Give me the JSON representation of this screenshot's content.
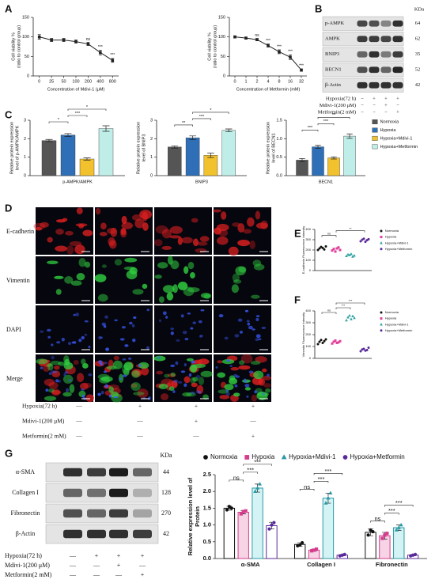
{
  "panel_labels": [
    "A",
    "B",
    "C",
    "D",
    "E",
    "F",
    "G"
  ],
  "blot_b": {
    "header": "KDa",
    "rows": [
      {
        "label": "p-AMPK",
        "kda": "64"
      },
      {
        "label": "AMPK",
        "kda": "62"
      },
      {
        "label": "BNIP3",
        "kda": "35"
      },
      {
        "label": "BECN1",
        "kda": "52"
      },
      {
        "label": "β-Actin",
        "kda": "42"
      }
    ],
    "conditions": [
      {
        "label": "Hypoxia(72 h)",
        "signs": [
          "−",
          "+",
          "+",
          "+"
        ]
      },
      {
        "label": "Mdivi-1(200 μM)",
        "signs": [
          "−",
          "−",
          "+",
          "−"
        ]
      },
      {
        "label": "Metformin(2 mM)",
        "signs": [
          "−",
          "−",
          "−",
          "+"
        ]
      }
    ]
  },
  "panel_d": {
    "rows": [
      "E-cadherin",
      "Vimentin",
      "DAPI",
      "Merge"
    ],
    "conditions": [
      {
        "label": "Hypoxia(72 h)",
        "signs": [
          "—",
          "+",
          "+",
          "+"
        ]
      },
      {
        "label": "Mdivi-1(200 μM)",
        "signs": [
          "—",
          "—",
          "+",
          "—"
        ]
      },
      {
        "label": "Metformin(2 mM)",
        "signs": [
          "—",
          "—",
          "—",
          "+"
        ]
      }
    ]
  },
  "blot_g": {
    "header": "KDa",
    "rows": [
      {
        "label": "α-SMA",
        "kda": "44"
      },
      {
        "label": "Collagen I",
        "kda": "128"
      },
      {
        "label": "Fibronectin",
        "kda": "270"
      },
      {
        "label": "β-Actin",
        "kda": "42"
      }
    ],
    "conditions": [
      {
        "label": "Hypoxia(72 h)",
        "signs": [
          "—",
          "+",
          "+",
          "+"
        ]
      },
      {
        "label": "Mdivi-1(200 μM)",
        "signs": [
          "—",
          "—",
          "+",
          "—"
        ]
      },
      {
        "label": "Metformin(2 mM)",
        "signs": [
          "—",
          "—",
          "—",
          "+"
        ]
      }
    ]
  },
  "chart_data": [
    {
      "type": "line",
      "x_label": "Concentration of Mdivi-1 (μM)",
      "y_label": [
        "Cell viability %",
        "(ratio to control group)"
      ],
      "categories": [
        "0",
        "25",
        "50",
        "100",
        "200",
        "400",
        "800"
      ],
      "series": [
        {
          "color": "#222222",
          "values": [
            100,
            92,
            92,
            88,
            82,
            60,
            40
          ],
          "errors": [
            6,
            4,
            4,
            4,
            4,
            6,
            5
          ],
          "point_labels": [
            null,
            null,
            null,
            null,
            "ns",
            "***",
            "***"
          ]
        }
      ],
      "ylim": [
        0,
        150
      ],
      "yticks": [
        0,
        50,
        100,
        150
      ]
    },
    {
      "type": "line",
      "x_label": "Concentration of Metformin (mM)",
      "y_label": [
        "Cell viability %",
        "(ratio to control group)"
      ],
      "categories": [
        "0",
        "1",
        "2",
        "4",
        "8",
        "16",
        "32"
      ],
      "series": [
        {
          "color": "#222222",
          "values": [
            100,
            97,
            93,
            78,
            62,
            48,
            15
          ],
          "errors": [
            3,
            3,
            3,
            4,
            5,
            6,
            3
          ],
          "point_labels": [
            null,
            null,
            "ns",
            "***",
            "***",
            "***",
            "***"
          ]
        }
      ],
      "ylim": [
        0,
        150
      ],
      "yticks": [
        0,
        50,
        100,
        150
      ]
    },
    {
      "type": "bar",
      "y_label": [
        "Relative protein expression",
        "level of p-AMPK/AMPK"
      ],
      "categories": [
        "p-AMPK/AMPK"
      ],
      "series": [
        {
          "color": "#555555",
          "values": [
            1.9
          ],
          "errors": [
            0.06
          ]
        },
        {
          "color": "#2e6fb7",
          "values": [
            2.2
          ],
          "errors": [
            0.08
          ]
        },
        {
          "color": "#f2c12e",
          "values": [
            0.9
          ],
          "errors": [
            0.06
          ]
        },
        {
          "color": "#bfeee8",
          "values": [
            2.55
          ],
          "errors": [
            0.15
          ]
        }
      ],
      "brackets": [
        {
          "series": [
            0,
            1
          ],
          "label": "*"
        },
        {
          "series": [
            1,
            2
          ],
          "label": "***"
        },
        {
          "series": [
            1,
            3
          ],
          "label": "*"
        }
      ],
      "ylim": [
        0,
        3
      ],
      "yticks": [
        0,
        1,
        2,
        3
      ]
    },
    {
      "type": "bar",
      "y_label": [
        "Relative protein expression",
        "level of BNIP3"
      ],
      "categories": [
        "BNIP3"
      ],
      "series": [
        {
          "color": "#555555",
          "values": [
            1.55
          ],
          "errors": [
            0.06
          ]
        },
        {
          "color": "#2e6fb7",
          "values": [
            2.05
          ],
          "errors": [
            0.1
          ]
        },
        {
          "color": "#f2c12e",
          "values": [
            1.1
          ],
          "errors": [
            0.12
          ]
        },
        {
          "color": "#bfeee8",
          "values": [
            2.45
          ],
          "errors": [
            0.08
          ]
        }
      ],
      "brackets": [
        {
          "series": [
            0,
            1
          ],
          "label": "**"
        },
        {
          "series": [
            1,
            2
          ],
          "label": "***"
        },
        {
          "series": [
            1,
            3
          ],
          "label": "*"
        }
      ],
      "ylim": [
        0,
        3
      ],
      "yticks": [
        0,
        1,
        2,
        3
      ]
    },
    {
      "type": "bar",
      "y_label": [
        "Relative protein expression",
        "level of BECN1"
      ],
      "categories": [
        "BECN1"
      ],
      "legend": "right",
      "series": [
        {
          "name": "Normoxia",
          "color": "#555555",
          "values": [
            0.42
          ],
          "errors": [
            0.04
          ]
        },
        {
          "name": "Hypoxia",
          "color": "#2e6fb7",
          "values": [
            0.78
          ],
          "errors": [
            0.04
          ]
        },
        {
          "name": "Hypoxia+Mdivi-1",
          "color": "#f2c12e",
          "values": [
            0.48
          ],
          "errors": [
            0.03
          ]
        },
        {
          "name": "Hypoxia+Metformin",
          "color": "#bfeee8",
          "values": [
            1.07
          ],
          "errors": [
            0.06
          ]
        }
      ],
      "brackets": [
        {
          "series": [
            0,
            1
          ],
          "label": "***"
        },
        {
          "series": [
            1,
            2
          ],
          "label": "***"
        },
        {
          "series": [
            1,
            3
          ],
          "label": "**"
        }
      ],
      "ylim": [
        0,
        1.5
      ],
      "yticks": [
        {
          "value": 0,
          "label": "0.0"
        },
        0.5,
        {
          "value": 1,
          "label": "1.0"
        },
        1.5
      ]
    },
    {
      "type": "dot",
      "y_label": [
        "E-cadherin Fluorescence Intensity"
      ],
      "legend": "right",
      "series": [
        {
          "name": "Normoxia",
          "color": "#111111",
          "marker": "circle",
          "values": [
            200,
            215,
            230,
            220,
            205,
            235
          ]
        },
        {
          "name": "Hypoxia",
          "color": "#e0409a",
          "marker": "square",
          "values": [
            195,
            210,
            185,
            215,
            225,
            200
          ]
        },
        {
          "name": "Hypoxia+Mdivi-1",
          "color": "#2aa0a0",
          "marker": "triangle",
          "values": [
            140,
            155,
            150,
            160,
            135,
            145
          ]
        },
        {
          "name": "Hypoxia+Metformin",
          "color": "#5a2a9a",
          "marker": "circle",
          "values": [
            285,
            300,
            310,
            280,
            295,
            305
          ]
        }
      ],
      "brackets": [
        {
          "series": [
            0,
            1
          ],
          "label": "ns"
        },
        {
          "series": [
            1,
            3
          ],
          "label": "**"
        }
      ],
      "ylim": [
        0,
        400
      ],
      "yticks": [
        0,
        100,
        200,
        300,
        400
      ]
    },
    {
      "type": "dot",
      "y_label": [
        "Vimentin Fluorescence Intensity"
      ],
      "legend": "right",
      "series": [
        {
          "name": "Normoxia",
          "color": "#111111",
          "marker": "circle",
          "values": [
            120,
            140,
            155,
            130,
            145,
            160
          ]
        },
        {
          "name": "Hypoxia",
          "color": "#e0409a",
          "marker": "square",
          "values": [
            125,
            140,
            150,
            130,
            135,
            145
          ]
        },
        {
          "name": "Hypoxia+Mdivi-1",
          "color": "#2aa0a0",
          "marker": "triangle",
          "values": [
            320,
            345,
            360,
            330,
            355,
            340
          ]
        },
        {
          "name": "Hypoxia+Metformin",
          "color": "#5a2a9a",
          "marker": "circle",
          "values": [
            60,
            75,
            80,
            65,
            70,
            90
          ]
        }
      ],
      "brackets": [
        {
          "series": [
            0,
            1
          ],
          "label": "ns"
        },
        {
          "series": [
            1,
            2
          ],
          "label": "***"
        },
        {
          "series": [
            1,
            3
          ],
          "label": "***"
        }
      ],
      "ylim": [
        0,
        400
      ],
      "yticks": [
        0,
        100,
        200,
        300,
        400
      ]
    },
    {
      "type": "bar",
      "y_label": [
        "Relative expression level of",
        "Protein"
      ],
      "categories": [
        "α-SMA",
        "Collagen I",
        "Fibronectin"
      ],
      "legend": "top",
      "series": [
        {
          "name": "Normoxia",
          "color": "#111111",
          "fill": "#ffffff",
          "marker": "circle",
          "values": [
            1.5,
            0.42,
            0.78
          ],
          "errors": [
            0.06,
            0.05,
            0.1
          ],
          "points": [
            [
              1.45,
              1.55,
              1.5
            ],
            [
              0.38,
              0.4,
              0.47
            ],
            [
              0.7,
              0.85,
              0.8
            ]
          ]
        },
        {
          "name": "Hypoxia",
          "color": "#d63c8c",
          "fill": "#f7d3e6",
          "marker": "square",
          "values": [
            1.38,
            0.25,
            0.68
          ],
          "errors": [
            0.05,
            0.03,
            0.1
          ],
          "points": [
            [
              1.33,
              1.4,
              1.42
            ],
            [
              0.23,
              0.25,
              0.28
            ],
            [
              0.6,
              0.7,
              0.75
            ]
          ]
        },
        {
          "name": "Hypoxia+Mdivi-1",
          "color": "#2a9aa5",
          "fill": "#d4f3f5",
          "marker": "triangle",
          "values": [
            2.1,
            1.8,
            0.92
          ],
          "errors": [
            0.12,
            0.15,
            0.08
          ],
          "points": [
            [
              2.0,
              2.1,
              2.22
            ],
            [
              1.65,
              1.8,
              1.95
            ],
            [
              0.85,
              0.92,
              1.0
            ]
          ]
        },
        {
          "name": "Hypoxia+Metformin",
          "color": "#5a2a9a",
          "fill": "#ffffff",
          "marker": "circle",
          "values": [
            0.98,
            0.1,
            0.1
          ],
          "errors": [
            0.1,
            0.02,
            0.02
          ],
          "points": [
            [
              0.88,
              1.0,
              1.07
            ],
            [
              0.08,
              0.1,
              0.12
            ],
            [
              0.08,
              0.1,
              0.12
            ]
          ]
        }
      ],
      "brackets": [
        {
          "category": 0,
          "series": [
            0,
            1
          ],
          "label": "ns"
        },
        {
          "category": 0,
          "series": [
            1,
            2
          ],
          "label": "***"
        },
        {
          "category": 0,
          "series": [
            1,
            3
          ],
          "label": "***"
        },
        {
          "category": 1,
          "series": [
            0,
            1
          ],
          "label": "ns"
        },
        {
          "category": 1,
          "series": [
            1,
            2
          ],
          "label": "***"
        },
        {
          "category": 1,
          "series": [
            1,
            3
          ],
          "label": "***"
        },
        {
          "category": 2,
          "series": [
            0,
            1
          ],
          "label": "ns"
        },
        {
          "category": 2,
          "series": [
            1,
            2
          ],
          "label": "***"
        },
        {
          "category": 2,
          "series": [
            1,
            3
          ],
          "label": "***"
        }
      ],
      "ylim": [
        0,
        2.5
      ],
      "yticks": [
        {
          "value": 0,
          "label": "0.0"
        },
        0.5,
        {
          "value": 1,
          "label": "1.0"
        },
        1.5,
        {
          "value": 2,
          "label": "2.0"
        },
        2.5
      ]
    }
  ]
}
